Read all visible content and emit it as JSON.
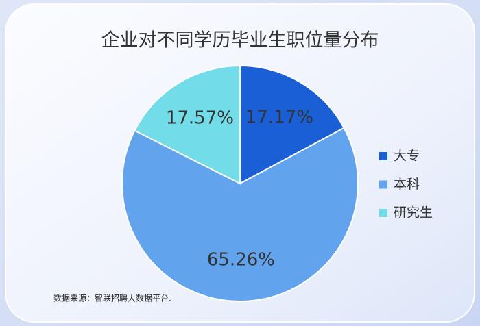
{
  "chart_data": {
    "type": "pie",
    "title": "企业对不同学历毕业生职位量分布",
    "categories": [
      "大专",
      "本科",
      "研究生"
    ],
    "values": [
      17.17,
      65.26,
      17.57
    ],
    "value_labels": [
      "17.17%",
      "65.26%",
      "17.57%"
    ],
    "colors": [
      "#1a5fd6",
      "#62a3ee",
      "#72dde8"
    ],
    "legend": "right",
    "source": "数据来源：智联招聘大数据平台."
  }
}
